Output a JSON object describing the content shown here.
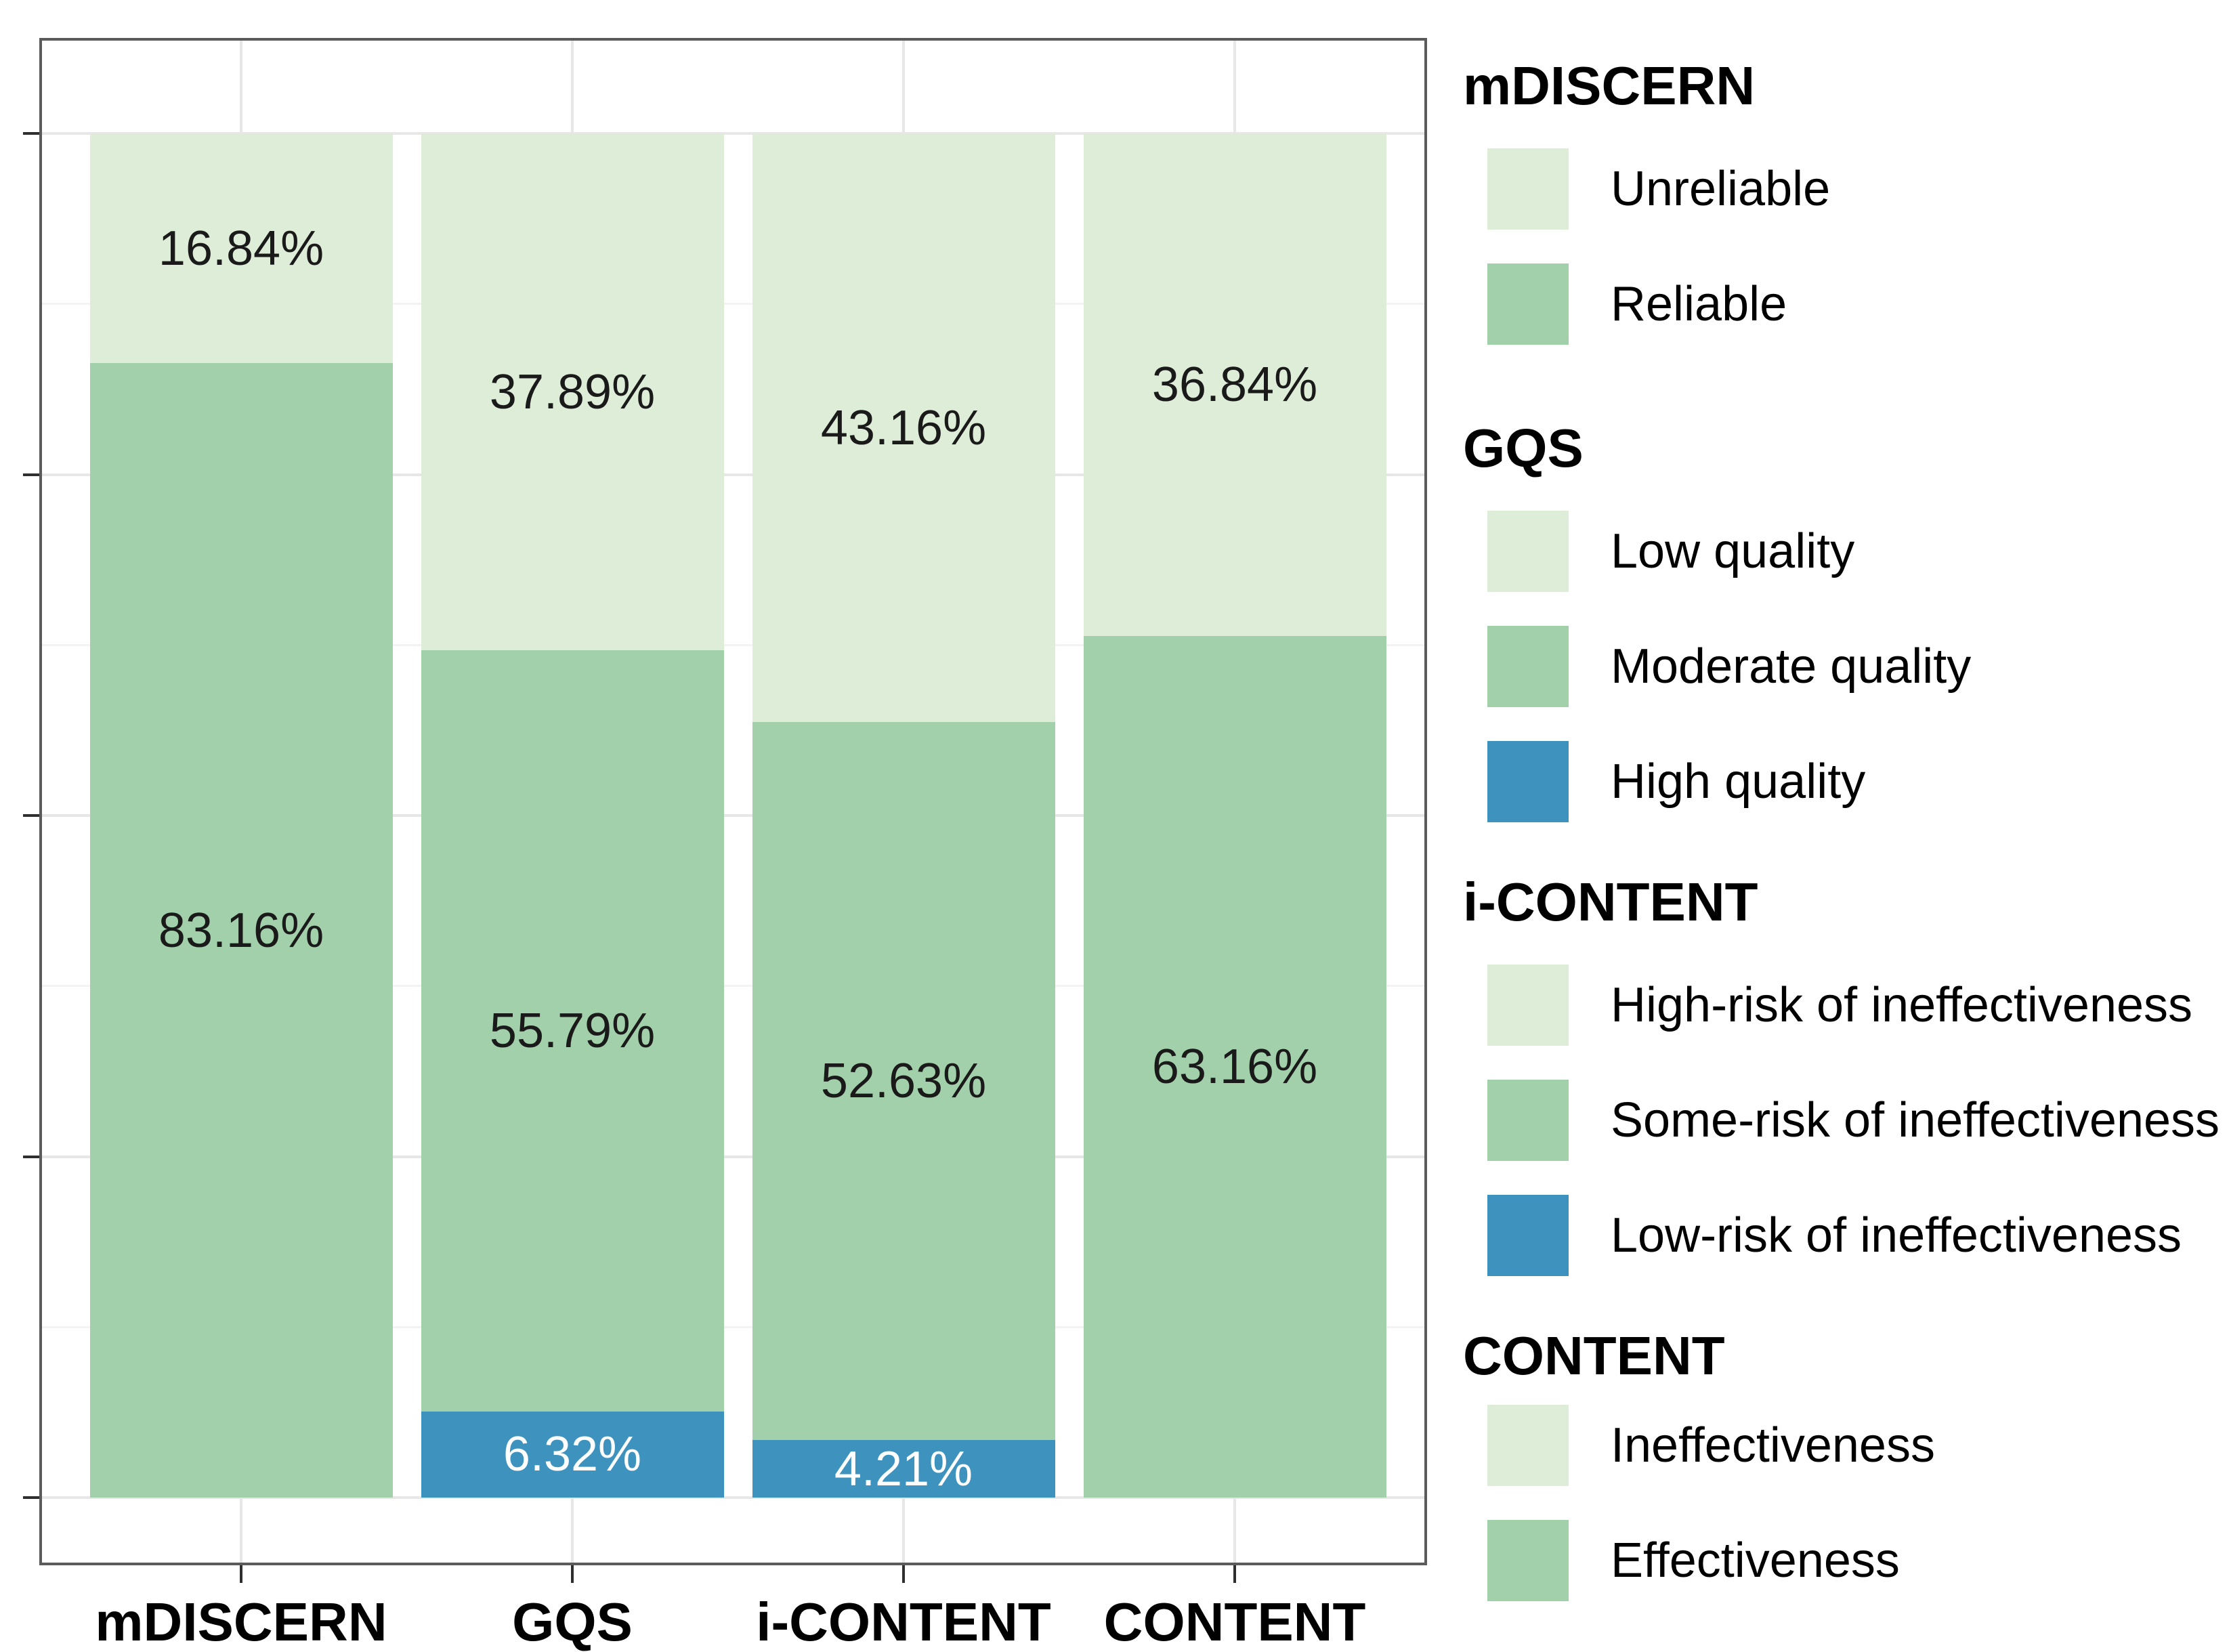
{
  "chart_data": {
    "type": "bar",
    "subtype": "stacked-100-percent",
    "title": "",
    "xlabel": "",
    "ylabel": "",
    "categories": [
      "mDISCERN",
      "GQS",
      "i-CONTENT",
      "CONTENT"
    ],
    "y_axis": {
      "min": 0,
      "max": 100,
      "major_tick_percents": [
        0,
        25,
        50,
        75,
        100
      ],
      "minor_tick_percents": [
        12.5,
        37.5,
        62.5,
        87.5
      ],
      "tick_labels_shown": false,
      "grid": true
    },
    "colors": {
      "light": "#deedd8",
      "mid": "#a2d0aa",
      "blue": "#3d92be"
    },
    "label_text_colors": {
      "light": "#1a1a1a",
      "mid": "#1a1a1a",
      "blue": "#ffffff"
    },
    "bars": [
      {
        "category": "mDISCERN",
        "segments": [
          {
            "label": "Unreliable",
            "value": 16.84,
            "display": "16.84%",
            "color_key": "light"
          },
          {
            "label": "Reliable",
            "value": 83.16,
            "display": "83.16%",
            "color_key": "mid"
          }
        ]
      },
      {
        "category": "GQS",
        "segments": [
          {
            "label": "Low quality",
            "value": 37.89,
            "display": "37.89%",
            "color_key": "light"
          },
          {
            "label": "Moderate quality",
            "value": 55.79,
            "display": "55.79%",
            "color_key": "mid"
          },
          {
            "label": "High quality",
            "value": 6.32,
            "display": "6.32%",
            "color_key": "blue"
          }
        ]
      },
      {
        "category": "i-CONTENT",
        "segments": [
          {
            "label": "High-risk of ineffectiveness",
            "value": 43.16,
            "display": "43.16%",
            "color_key": "light"
          },
          {
            "label": "Some-risk of ineffectiveness",
            "value": 52.63,
            "display": "52.63%",
            "color_key": "mid"
          },
          {
            "label": "Low-risk of ineffectiveness",
            "value": 4.21,
            "display": "4.21%",
            "color_key": "blue"
          }
        ]
      },
      {
        "category": "CONTENT",
        "segments": [
          {
            "label": "Ineffectiveness",
            "value": 36.84,
            "display": "36.84%",
            "color_key": "light"
          },
          {
            "label": "Effectiveness",
            "value": 63.16,
            "display": "63.16%",
            "color_key": "mid"
          }
        ]
      }
    ]
  },
  "legend": {
    "groups": [
      {
        "title": "mDISCERN",
        "items": [
          {
            "label": "Unreliable",
            "color_key": "light"
          },
          {
            "label": "Reliable",
            "color_key": "mid"
          }
        ]
      },
      {
        "title": "GQS",
        "items": [
          {
            "label": "Low quality",
            "color_key": "light"
          },
          {
            "label": "Moderate quality",
            "color_key": "mid"
          },
          {
            "label": "High quality",
            "color_key": "blue"
          }
        ]
      },
      {
        "title": "i-CONTENT",
        "items": [
          {
            "label": "High-risk of ineffectiveness",
            "color_key": "light"
          },
          {
            "label": "Some-risk of ineffectiveness",
            "color_key": "mid"
          },
          {
            "label": "Low-risk of ineffectiveness",
            "color_key": "blue"
          }
        ]
      },
      {
        "title": "CONTENT",
        "items": [
          {
            "label": "Ineffectiveness",
            "color_key": "light"
          },
          {
            "label": "Effectiveness",
            "color_key": "mid"
          }
        ]
      }
    ]
  }
}
